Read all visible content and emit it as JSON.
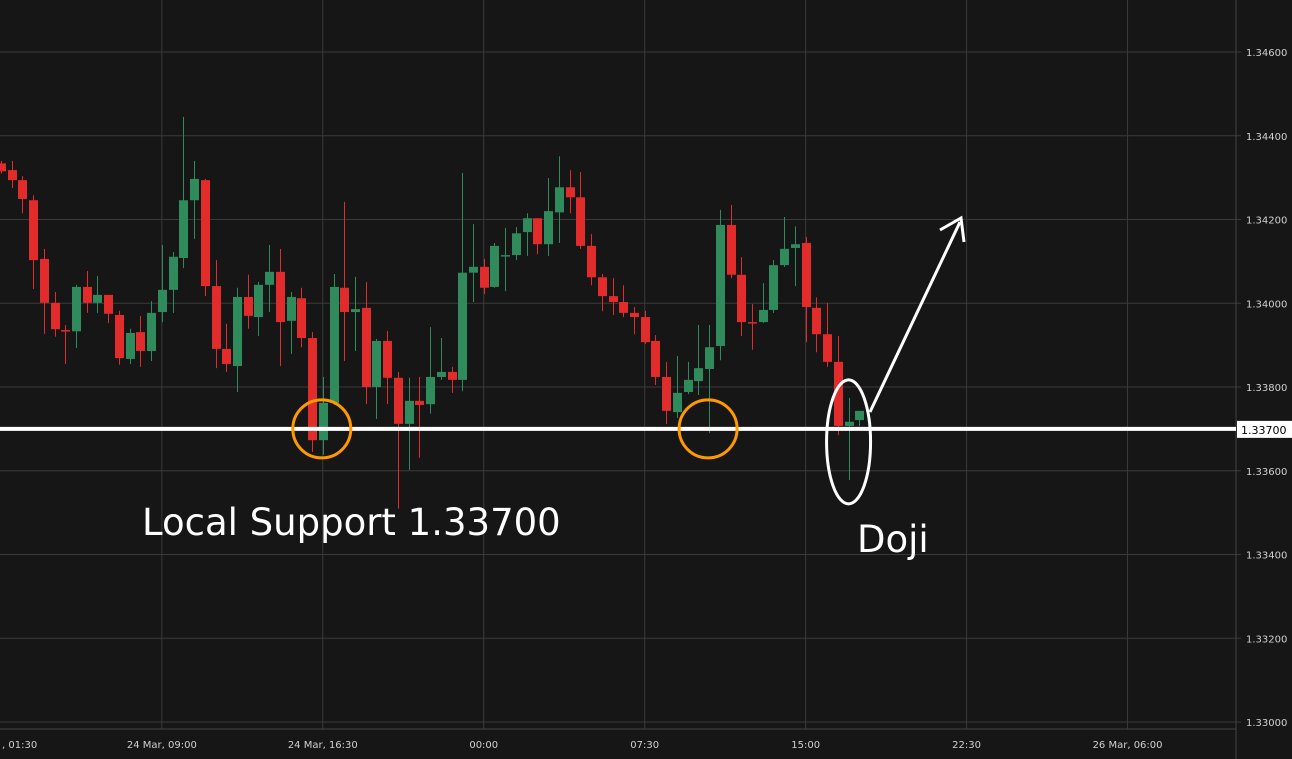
{
  "chart_data": {
    "type": "candlestick",
    "interval": "30m",
    "start": "24 Mar 01:30",
    "ylim": [
      1.33,
      1.3466
    ],
    "grid": true,
    "colors": {
      "up": "#2f8a5c",
      "down": "#e22b2b",
      "background": "#161616",
      "grid": "#3a3a3a",
      "support": "#ffffff",
      "highlight": "#ff9900"
    },
    "y_ticks": [
      "1.34600",
      "1.34400",
      "1.34200",
      "1.34000",
      "1.33800",
      "1.33600",
      "1.33400",
      "1.33200",
      "1.33000"
    ],
    "x_ticks": [
      ", 01:30",
      "24 Mar, 09:00",
      "24 Mar, 16:30",
      "00:00",
      "07:30",
      "15:00",
      "22:30",
      "26 Mar, 06:00"
    ],
    "ohlc": [
      [
        1.34334,
        1.3434,
        1.3431,
        1.34315
      ],
      [
        1.34318,
        1.3434,
        1.34275,
        1.34294
      ],
      [
        1.34294,
        1.34304,
        1.34215,
        1.34249
      ],
      [
        1.34246,
        1.34258,
        1.34034,
        1.34103
      ],
      [
        1.34106,
        1.3413,
        1.33927,
        1.34001
      ],
      [
        1.34001,
        1.34027,
        1.3392,
        1.33938
      ],
      [
        1.33936,
        1.33948,
        1.33855,
        1.33933
      ],
      [
        1.33933,
        1.34044,
        1.33893,
        1.34039
      ],
      [
        1.34039,
        1.34077,
        1.33977,
        1.34001
      ],
      [
        1.34001,
        1.34065,
        1.33977,
        1.3402
      ],
      [
        1.3402,
        1.3402,
        1.33953,
        1.33975
      ],
      [
        1.33972,
        1.33982,
        1.33853,
        1.33869
      ],
      [
        1.33867,
        1.33939,
        1.33855,
        1.33929
      ],
      [
        1.33931,
        1.3397,
        1.33848,
        1.33886
      ],
      [
        1.33886,
        1.34005,
        1.33862,
        1.33977
      ],
      [
        1.33979,
        1.34139,
        1.33955,
        1.34032
      ],
      [
        1.34032,
        1.34122,
        1.33977,
        1.34111
      ],
      [
        1.34108,
        1.34445,
        1.34084,
        1.34246
      ],
      [
        1.34246,
        1.3434,
        1.34154,
        1.34297
      ],
      [
        1.34294,
        1.34297,
        1.34017,
        1.34041
      ],
      [
        1.34041,
        1.34103,
        1.33845,
        1.33891
      ],
      [
        1.33891,
        1.33951,
        1.33836,
        1.33855
      ],
      [
        1.3385,
        1.34037,
        1.33788,
        1.34015
      ],
      [
        1.34015,
        1.34068,
        1.33939,
        1.3397
      ],
      [
        1.33967,
        1.34051,
        1.33922,
        1.34044
      ],
      [
        1.34044,
        1.34139,
        1.33979,
        1.34075
      ],
      [
        1.34075,
        1.3413,
        1.3385,
        1.33955
      ],
      [
        1.33958,
        1.34027,
        1.33879,
        1.34015
      ],
      [
        1.34012,
        1.34037,
        1.33895,
        1.33917
      ],
      [
        1.33917,
        1.33931,
        1.33645,
        1.33673
      ],
      [
        1.33673,
        1.33824,
        1.33638,
        1.33762
      ],
      [
        1.33762,
        1.3407,
        1.33757,
        1.34039
      ],
      [
        1.34037,
        1.34242,
        1.33862,
        1.33979
      ],
      [
        1.33979,
        1.34063,
        1.33886,
        1.33986
      ],
      [
        1.33989,
        1.34051,
        1.33759,
        1.338
      ],
      [
        1.338,
        1.33915,
        1.33724,
        1.3391
      ],
      [
        1.3391,
        1.33934,
        1.33759,
        1.33822
      ],
      [
        1.33822,
        1.33836,
        1.3351,
        1.33712
      ],
      [
        1.33712,
        1.33822,
        1.33602,
        1.33767
      ],
      [
        1.33767,
        1.33824,
        1.33631,
        1.33757
      ],
      [
        1.33759,
        1.33943,
        1.33736,
        1.33824
      ],
      [
        1.33824,
        1.33917,
        1.33817,
        1.33836
      ],
      [
        1.33836,
        1.33848,
        1.33786,
        1.33817
      ],
      [
        1.33817,
        1.34311,
        1.3379,
        1.34073
      ],
      [
        1.34073,
        1.34189,
        1.34003,
        1.34087
      ],
      [
        1.34087,
        1.34106,
        1.34022,
        1.34037
      ],
      [
        1.34039,
        1.34144,
        1.34037,
        1.34137
      ],
      [
        1.34113,
        1.3418,
        1.34029,
        1.34115
      ],
      [
        1.34115,
        1.34182,
        1.34103,
        1.34167
      ],
      [
        1.3417,
        1.34215,
        1.34113,
        1.34203
      ],
      [
        1.34203,
        1.34203,
        1.34117,
        1.34141
      ],
      [
        1.34141,
        1.34299,
        1.34113,
        1.3422
      ],
      [
        1.34217,
        1.34351,
        1.34144,
        1.34277
      ],
      [
        1.34277,
        1.34318,
        1.34215,
        1.34253
      ],
      [
        1.34253,
        1.34313,
        1.3413,
        1.34137
      ],
      [
        1.34137,
        1.34165,
        1.34043,
        1.34062
      ],
      [
        1.34062,
        1.3407,
        1.33981,
        1.34017
      ],
      [
        1.34017,
        1.3406,
        1.33972,
        1.34003
      ],
      [
        1.34003,
        1.34043,
        1.33967,
        1.33977
      ],
      [
        1.33977,
        1.33991,
        1.33926,
        1.33967
      ],
      [
        1.33967,
        1.33982,
        1.33903,
        1.33907
      ],
      [
        1.3391,
        1.33924,
        1.33805,
        1.33824
      ],
      [
        1.33824,
        1.3386,
        1.33712,
        1.33743
      ],
      [
        1.3374,
        1.33874,
        1.33726,
        1.33786
      ],
      [
        1.33788,
        1.3386,
        1.33783,
        1.33817
      ],
      [
        1.33814,
        1.33948,
        1.33781,
        1.33845
      ],
      [
        1.33843,
        1.33948,
        1.3369,
        1.33895
      ],
      [
        1.33898,
        1.34223,
        1.33864,
        1.34187
      ],
      [
        1.34187,
        1.34235,
        1.3406,
        1.34068
      ],
      [
        1.34068,
        1.3411,
        1.33922,
        1.33955
      ],
      [
        1.33955,
        1.33998,
        1.33889,
        1.33953
      ],
      [
        1.33955,
        1.34048,
        1.33953,
        1.33984
      ],
      [
        1.33984,
        1.34103,
        1.33977,
        1.34091
      ],
      [
        1.34091,
        1.34206,
        1.34087,
        1.3413
      ],
      [
        1.34132,
        1.34184,
        1.34041,
        1.34141
      ],
      [
        1.34144,
        1.34158,
        1.33907,
        1.33991
      ],
      [
        1.33989,
        1.34014,
        1.33883,
        1.33926
      ],
      [
        1.33926,
        1.34001,
        1.33848,
        1.3386
      ],
      [
        1.3386,
        1.33922,
        1.33685,
        1.33707
      ],
      [
        1.33707,
        1.33774,
        1.33578,
        1.33717
      ],
      [
        1.33721,
        1.33743,
        1.33707,
        1.33743
      ]
    ],
    "annotations": {
      "support_level": 1.337,
      "support_label": "1.33700",
      "support_text": "Local Support 1.33700",
      "doji_text": "Doji"
    }
  }
}
